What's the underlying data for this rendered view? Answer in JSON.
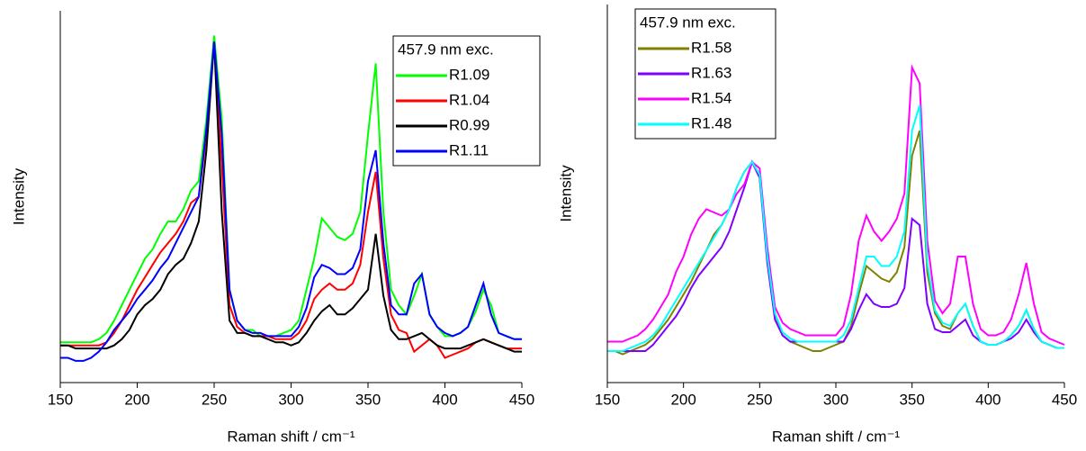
{
  "chart_data": [
    {
      "type": "line",
      "ylabel": "Intensity",
      "xlabel": "Raman shift / cm⁻¹",
      "legend_title": "457.9 nm exc.",
      "xlim": [
        150,
        450
      ],
      "xticks": [
        150,
        200,
        250,
        300,
        350,
        400,
        450
      ],
      "ylim": [
        -0.1,
        1.1
      ],
      "x": [
        150,
        155,
        160,
        165,
        170,
        175,
        180,
        185,
        190,
        195,
        200,
        205,
        210,
        215,
        220,
        225,
        230,
        235,
        240,
        245,
        250,
        255,
        260,
        265,
        270,
        275,
        280,
        285,
        290,
        295,
        300,
        305,
        310,
        315,
        320,
        325,
        330,
        335,
        340,
        345,
        350,
        355,
        360,
        365,
        370,
        375,
        380,
        385,
        390,
        395,
        400,
        405,
        410,
        415,
        420,
        425,
        430,
        435,
        440,
        445,
        450
      ],
      "series": [
        {
          "name": "R1.09",
          "color": "#00ff00",
          "values": [
            0.03,
            0.03,
            0.03,
            0.03,
            0.03,
            0.04,
            0.06,
            0.1,
            0.15,
            0.2,
            0.25,
            0.3,
            0.33,
            0.38,
            0.42,
            0.42,
            0.46,
            0.52,
            0.55,
            0.75,
            1.02,
            0.75,
            0.2,
            0.1,
            0.07,
            0.07,
            0.05,
            0.05,
            0.05,
            0.06,
            0.07,
            0.1,
            0.2,
            0.3,
            0.43,
            0.4,
            0.37,
            0.36,
            0.38,
            0.45,
            0.7,
            0.93,
            0.45,
            0.2,
            0.15,
            0.12,
            0.18,
            0.25,
            0.12,
            0.08,
            0.05,
            0.05,
            0.06,
            0.08,
            0.13,
            0.2,
            0.15,
            0.06,
            0.05,
            0.04,
            0.04
          ]
        },
        {
          "name": "R1.04",
          "color": "#ff0000",
          "values": [
            0.02,
            0.02,
            0.02,
            0.02,
            0.02,
            0.02,
            0.03,
            0.06,
            0.1,
            0.15,
            0.2,
            0.24,
            0.28,
            0.32,
            0.35,
            0.38,
            0.42,
            0.48,
            0.5,
            0.7,
            1.0,
            0.6,
            0.15,
            0.08,
            0.06,
            0.05,
            0.05,
            0.05,
            0.04,
            0.04,
            0.04,
            0.06,
            0.1,
            0.17,
            0.2,
            0.22,
            0.2,
            0.2,
            0.22,
            0.28,
            0.45,
            0.58,
            0.3,
            0.12,
            0.07,
            0.06,
            0.0,
            0.02,
            0.04,
            0.02,
            -0.02,
            -0.01,
            0.0,
            0.01,
            0.03,
            0.04,
            0.03,
            0.02,
            0.01,
            0.01,
            0.01
          ]
        },
        {
          "name": "R0.99",
          "color": "#000000",
          "values": [
            0.02,
            0.02,
            0.01,
            0.01,
            0.01,
            0.01,
            0.01,
            0.02,
            0.04,
            0.07,
            0.12,
            0.15,
            0.17,
            0.2,
            0.25,
            0.28,
            0.3,
            0.35,
            0.42,
            0.65,
            1.0,
            0.45,
            0.1,
            0.06,
            0.06,
            0.05,
            0.05,
            0.04,
            0.03,
            0.03,
            0.02,
            0.03,
            0.06,
            0.1,
            0.13,
            0.15,
            0.12,
            0.12,
            0.14,
            0.17,
            0.2,
            0.38,
            0.18,
            0.07,
            0.04,
            0.04,
            0.05,
            0.06,
            0.04,
            0.02,
            0.01,
            0.01,
            0.01,
            0.02,
            0.03,
            0.04,
            0.03,
            0.02,
            0.01,
            0.0,
            0.0
          ]
        },
        {
          "name": "R1.11",
          "color": "#0000ff",
          "values": [
            -0.02,
            -0.02,
            -0.03,
            -0.03,
            -0.02,
            0.0,
            0.03,
            0.07,
            0.1,
            0.13,
            0.17,
            0.2,
            0.23,
            0.27,
            0.3,
            0.35,
            0.4,
            0.45,
            0.5,
            0.72,
            1.0,
            0.7,
            0.2,
            0.1,
            0.07,
            0.06,
            0.06,
            0.05,
            0.05,
            0.05,
            0.05,
            0.08,
            0.14,
            0.24,
            0.28,
            0.27,
            0.25,
            0.25,
            0.27,
            0.33,
            0.55,
            0.65,
            0.35,
            0.15,
            0.12,
            0.12,
            0.22,
            0.25,
            0.12,
            0.08,
            0.06,
            0.05,
            0.06,
            0.08,
            0.15,
            0.22,
            0.12,
            0.06,
            0.05,
            0.04,
            0.04
          ]
        }
      ]
    },
    {
      "type": "line",
      "ylabel": "Intensity",
      "xlabel": "Raman shift / cm⁻¹",
      "legend_title": "457.9 nm exc.",
      "xlim": [
        150,
        450
      ],
      "xticks": [
        150,
        200,
        250,
        300,
        350,
        400,
        450
      ],
      "ylim": [
        -0.1,
        1.1
      ],
      "x": [
        150,
        155,
        160,
        165,
        170,
        175,
        180,
        185,
        190,
        195,
        200,
        205,
        210,
        215,
        220,
        225,
        230,
        235,
        240,
        245,
        250,
        255,
        260,
        265,
        270,
        275,
        280,
        285,
        290,
        295,
        300,
        305,
        310,
        315,
        320,
        325,
        330,
        335,
        340,
        345,
        350,
        355,
        360,
        365,
        370,
        375,
        380,
        385,
        390,
        395,
        400,
        405,
        410,
        415,
        420,
        425,
        430,
        435,
        440,
        445,
        450
      ],
      "series": [
        {
          "name": "R1.58",
          "color": "#808000",
          "values": [
            0.0,
            0.0,
            -0.01,
            0.0,
            0.01,
            0.02,
            0.04,
            0.07,
            0.1,
            0.14,
            0.18,
            0.22,
            0.27,
            0.32,
            0.37,
            0.4,
            0.45,
            0.52,
            0.57,
            0.6,
            0.55,
            0.3,
            0.12,
            0.05,
            0.03,
            0.02,
            0.01,
            0.0,
            0.0,
            0.01,
            0.02,
            0.03,
            0.08,
            0.18,
            0.27,
            0.25,
            0.23,
            0.22,
            0.25,
            0.33,
            0.62,
            0.7,
            0.25,
            0.12,
            0.08,
            0.07,
            0.12,
            0.15,
            0.08,
            0.03,
            0.02,
            0.02,
            0.03,
            0.05,
            0.08,
            0.13,
            0.07,
            0.03,
            0.02,
            0.01,
            0.01
          ]
        },
        {
          "name": "R1.63",
          "color": "#7f00ff",
          "values": [
            0.0,
            0.0,
            0.0,
            0.0,
            0.0,
            0.0,
            0.02,
            0.05,
            0.08,
            0.11,
            0.15,
            0.2,
            0.24,
            0.27,
            0.3,
            0.33,
            0.38,
            0.45,
            0.52,
            0.6,
            0.55,
            0.28,
            0.1,
            0.05,
            0.03,
            0.03,
            0.03,
            0.03,
            0.03,
            0.03,
            0.03,
            0.03,
            0.07,
            0.13,
            0.18,
            0.15,
            0.14,
            0.14,
            0.15,
            0.2,
            0.42,
            0.4,
            0.15,
            0.07,
            0.06,
            0.06,
            0.08,
            0.1,
            0.05,
            0.03,
            0.02,
            0.02,
            0.03,
            0.04,
            0.06,
            0.1,
            0.06,
            0.03,
            0.02,
            0.01,
            0.01
          ]
        },
        {
          "name": "R1.54",
          "color": "#ff00ff",
          "values": [
            0.03,
            0.03,
            0.03,
            0.04,
            0.05,
            0.07,
            0.1,
            0.14,
            0.18,
            0.25,
            0.3,
            0.37,
            0.42,
            0.45,
            0.44,
            0.43,
            0.45,
            0.5,
            0.53,
            0.6,
            0.58,
            0.33,
            0.14,
            0.09,
            0.07,
            0.06,
            0.05,
            0.05,
            0.05,
            0.05,
            0.05,
            0.08,
            0.18,
            0.35,
            0.43,
            0.38,
            0.35,
            0.38,
            0.42,
            0.5,
            0.9,
            0.85,
            0.35,
            0.16,
            0.12,
            0.15,
            0.3,
            0.3,
            0.15,
            0.07,
            0.05,
            0.05,
            0.06,
            0.1,
            0.18,
            0.28,
            0.15,
            0.06,
            0.04,
            0.03,
            0.02
          ]
        },
        {
          "name": "R1.48",
          "color": "#00ffff",
          "values": [
            0.0,
            0.0,
            0.0,
            0.01,
            0.02,
            0.03,
            0.05,
            0.08,
            0.12,
            0.16,
            0.2,
            0.24,
            0.28,
            0.32,
            0.36,
            0.4,
            0.45,
            0.52,
            0.57,
            0.6,
            0.56,
            0.3,
            0.12,
            0.06,
            0.04,
            0.03,
            0.03,
            0.03,
            0.03,
            0.03,
            0.03,
            0.05,
            0.1,
            0.2,
            0.3,
            0.3,
            0.27,
            0.27,
            0.3,
            0.38,
            0.7,
            0.78,
            0.28,
            0.13,
            0.09,
            0.08,
            0.12,
            0.15,
            0.08,
            0.03,
            0.02,
            0.02,
            0.03,
            0.05,
            0.08,
            0.13,
            0.07,
            0.03,
            0.02,
            0.01,
            0.01
          ]
        }
      ]
    }
  ]
}
